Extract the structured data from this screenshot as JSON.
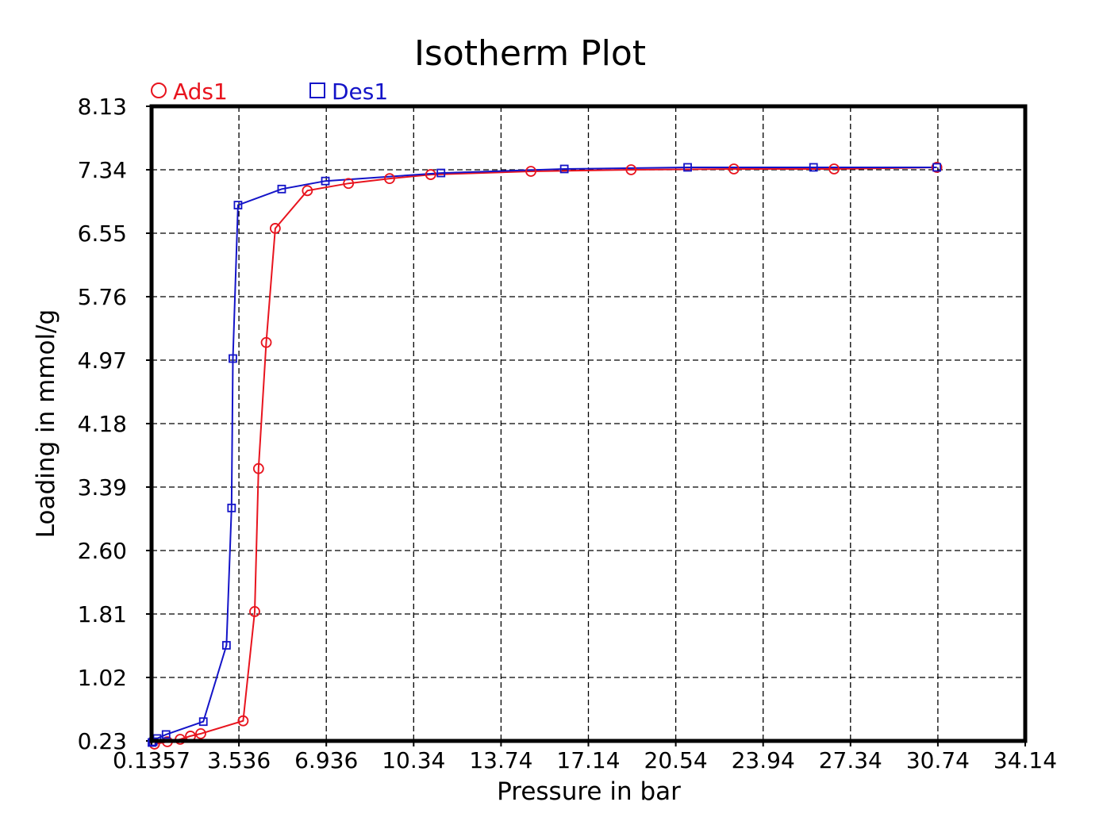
{
  "chart_data": {
    "type": "line",
    "title": "Isotherm Plot",
    "xlabel": "Pressure in bar",
    "ylabel": "Loading in mmol/g",
    "xlim": [
      0.1357,
      34.14
    ],
    "ylim": [
      0.23,
      8.13
    ],
    "x_ticks": [
      "0.1357",
      "3.536",
      "6.936",
      "10.34",
      "13.74",
      "17.14",
      "20.54",
      "23.94",
      "27.34",
      "30.74",
      "34.14"
    ],
    "y_ticks": [
      "0.23",
      "1.02",
      "1.81",
      "2.60",
      "3.39",
      "4.18",
      "4.97",
      "5.76",
      "6.55",
      "7.34",
      "8.13"
    ],
    "grid": true,
    "legend_position": "top-left",
    "series": [
      {
        "name": "Ads1",
        "color": "#e8141e",
        "marker": "circle",
        "x": [
          0.25,
          0.75,
          1.25,
          1.65,
          2.05,
          3.7,
          4.15,
          4.3,
          4.6,
          4.95,
          6.2,
          7.8,
          9.4,
          11.0,
          14.9,
          18.8,
          22.8,
          26.7,
          30.7
        ],
        "y": [
          0.19,
          0.22,
          0.25,
          0.29,
          0.32,
          0.48,
          1.84,
          3.62,
          5.19,
          6.61,
          7.08,
          7.17,
          7.23,
          7.28,
          7.32,
          7.34,
          7.35,
          7.35,
          7.37
        ]
      },
      {
        "name": "Des1",
        "color": "#1414c8",
        "marker": "square",
        "x": [
          30.7,
          25.9,
          21.0,
          16.2,
          11.4,
          6.9,
          5.2,
          3.5,
          3.3,
          3.25,
          3.05,
          2.15,
          0.7,
          0.35,
          0.2,
          0.15
        ],
        "y": [
          7.37,
          7.37,
          7.37,
          7.35,
          7.3,
          7.2,
          7.1,
          6.9,
          4.99,
          3.13,
          1.42,
          0.47,
          0.31,
          0.26,
          0.22,
          0.21
        ]
      }
    ]
  }
}
